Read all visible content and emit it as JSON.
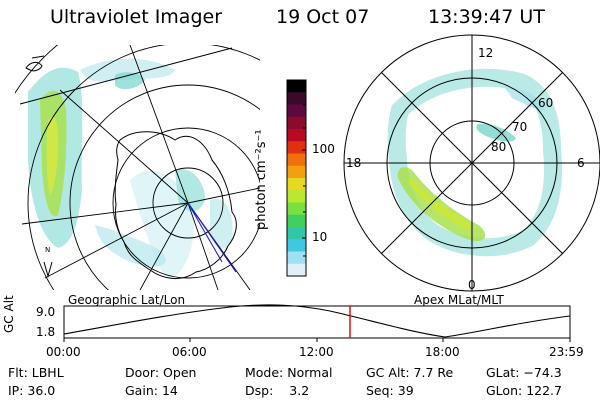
{
  "header": {
    "title": "Ultraviolet Imager",
    "date": "19 Oct 07",
    "time": "13:39:47 UT"
  },
  "left_panel": {
    "caption": "Geographic Lat/Lon",
    "symbol": "N",
    "fill_color": "#7fd8d0"
  },
  "colorbar": {
    "label": "photon cm⁻²s⁻¹",
    "ticks": [
      "100",
      "10"
    ],
    "colors": [
      "#000000",
      "#3a0a2a",
      "#5a0a40",
      "#8a0a30",
      "#b80a20",
      "#e03010",
      "#f07010",
      "#f0a010",
      "#e8d820",
      "#b8e830",
      "#78e040",
      "#40d060",
      "#30c8a8",
      "#40c8e0",
      "#a0e0f0",
      "#e0f0f8"
    ]
  },
  "right_panel": {
    "caption": "Apex MLat/MLT",
    "mlt_labels": {
      "top": "12",
      "bottom": "0",
      "left": "18",
      "right": "6"
    },
    "lat_labels": [
      "60",
      "70",
      "80"
    ],
    "band_color": "#7fd8d0",
    "bright_color": "#a8e050"
  },
  "timeline": {
    "ylabel": "GC Alt",
    "y_ticks": [
      "9.0",
      "1.8"
    ],
    "x_ticks": [
      "00:00",
      "06:00",
      "12:00",
      "18:00",
      "23:59"
    ],
    "marker_color": "#e00000"
  },
  "status": [
    {
      "label": "Flt:",
      "value": "LBHL"
    },
    {
      "label": "Door:",
      "value": "Open"
    },
    {
      "label": "Mode:",
      "value": "Normal"
    },
    {
      "label": "GC Alt:",
      "value": "7.7 Re"
    },
    {
      "label": "GLat:",
      "value": "−74.3"
    },
    {
      "label": "IP:",
      "value": "36.0"
    },
    {
      "label": "Gain:",
      "value": "14"
    },
    {
      "label": "Dsp:",
      "value": "3.2"
    },
    {
      "label": "Seq:",
      "value": "39"
    },
    {
      "label": "GLon:",
      "value": "122.7"
    }
  ]
}
